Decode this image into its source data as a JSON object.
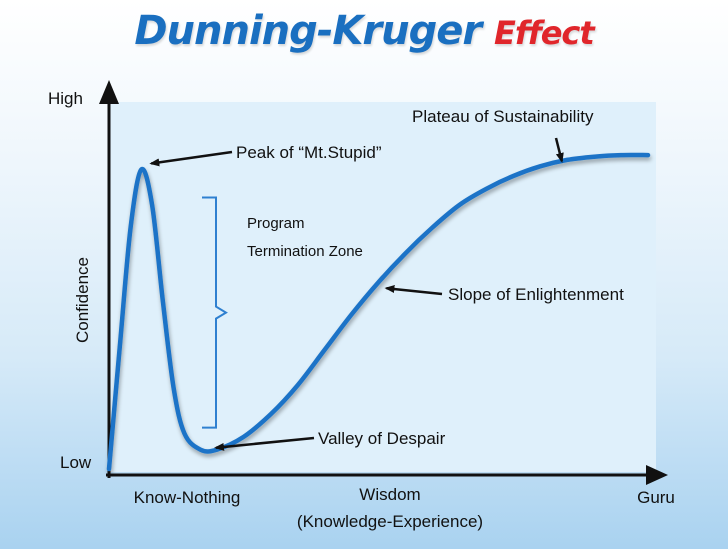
{
  "title": {
    "part1": "Dunning-Kruger",
    "part2": "Effect"
  },
  "colors": {
    "curve": "#1a73c7",
    "title_main": "#1a6fc0",
    "title_accent": "#e0262b",
    "plot_bg": "#dff0fb",
    "bracket": "#2f80d0"
  },
  "chart_data": {
    "type": "line",
    "title": "Dunning-Kruger Effect",
    "ylabel": "Confidence",
    "xlabel": "Wisdom",
    "xlabel_sub": "(Knowledge-Experience)",
    "x_ticks": [
      "Know-Nothing",
      "Guru"
    ],
    "y_ticks": [
      "High",
      "Low"
    ],
    "xlim": [
      0,
      100
    ],
    "ylim": [
      0,
      100
    ],
    "grid": false,
    "series": [
      {
        "x": [
          0,
          2,
          4,
          6,
          8,
          10,
          12,
          14,
          17,
          20,
          25,
          30,
          35,
          40,
          45,
          50,
          55,
          60,
          65,
          70,
          75,
          80,
          85,
          90,
          95,
          100
        ],
        "y": [
          0,
          38,
          75,
          93,
          82,
          52,
          25,
          11,
          6,
          6,
          10,
          17,
          26,
          37,
          48,
          58,
          67,
          75,
          82,
          87,
          91,
          94,
          96,
          97,
          97.5,
          97.5
        ]
      }
    ],
    "annotations": [
      {
        "text": "Peak of “Mt.Stupid”",
        "x": 6,
        "y": 93
      },
      {
        "text": "Valley of Despair",
        "x": 18,
        "y": 6
      },
      {
        "text": "Slope of Enlightenment",
        "x": 50,
        "y": 58
      },
      {
        "text": "Plateau of Sustainability",
        "x": 84,
        "y": 95
      }
    ],
    "range_annotation": {
      "lines": [
        "Program",
        "Termination Zone"
      ],
      "y_range": [
        6,
        93
      ]
    }
  }
}
